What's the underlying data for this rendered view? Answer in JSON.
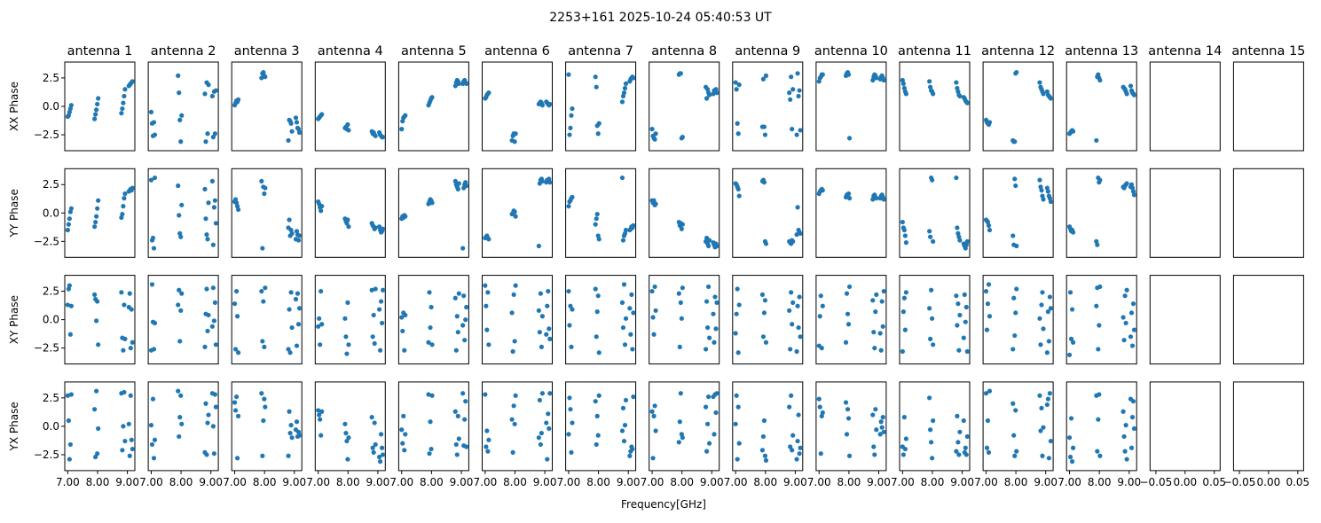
{
  "chart_data": {
    "type": "scatter",
    "title": "2253+161 2025-10-24 05:40:53 UT",
    "xlabel": "Frequency[GHz]",
    "marker_color": "#1f77b4",
    "rows": [
      "XX Phase",
      "YY Phase",
      "XY Phase",
      "YX Phase"
    ],
    "antennas": [
      "antenna 1",
      "antenna 2",
      "antenna 3",
      "antenna 4",
      "antenna 5",
      "antenna 6",
      "antenna 7",
      "antenna 8",
      "antenna 9",
      "antenna 10",
      "antenna 11",
      "antenna 12",
      "antenna 13",
      "antenna 14",
      "antenna 15"
    ],
    "xlim": [
      6.9,
      9.25
    ],
    "ylim": [
      -3.9,
      3.9
    ],
    "x_ticks": [
      7.0,
      8.0,
      9.0
    ],
    "x_tick_labels": [
      "7.00",
      "8.00",
      "9.00"
    ],
    "y_ticks": [
      -2.5,
      0.0,
      2.5
    ],
    "y_tick_labels": [
      "−2.5",
      "0.0",
      "2.5"
    ],
    "empty_panel_xlim": [
      -0.06,
      0.06
    ],
    "empty_panel_x_ticks": [
      -0.05,
      0.0,
      0.05
    ],
    "empty_panel_x_tick_labels": [
      "−0.05",
      "0.00",
      "0.05"
    ],
    "data_antennas": 13,
    "freqs": [
      7.0,
      7.03,
      7.06,
      7.09,
      7.12,
      7.9,
      7.93,
      7.96,
      7.99,
      8.02,
      8.8,
      8.83,
      8.86,
      8.89,
      8.92,
      9.05,
      9.08,
      9.11,
      9.14,
      9.17
    ],
    "phases": {
      "XX Phase": [
        [
          -0.9,
          -0.8,
          -0.5,
          -0.2,
          0.1,
          -1.1,
          -0.7,
          -0.3,
          0.2,
          0.7,
          -0.6,
          -0.2,
          0.3,
          0.9,
          1.5,
          1.8,
          1.9,
          2.0,
          2.1,
          2.2
        ],
        [
          -0.5,
          -1.5,
          -2.6,
          -1.4,
          -2.5,
          2.7,
          1.2,
          -1.2,
          -3.1,
          -0.8,
          1.1,
          -3.1,
          2.1,
          -2.4,
          1.9,
          0.9,
          -2.7,
          1.3,
          -2.4,
          1.4
        ],
        [
          0.1,
          0.3,
          0.5,
          0.4,
          0.6,
          2.5,
          2.9,
          3.0,
          2.7,
          2.6,
          -3.0,
          -1.2,
          -1.3,
          -1.5,
          -2.2,
          -1.0,
          -1.4,
          -1.9,
          -2.0,
          -2.3
        ],
        [
          -1.1,
          -1.0,
          -0.9,
          -0.8,
          -0.7,
          -1.9,
          -1.8,
          -2.0,
          -1.6,
          -2.1,
          -2.2,
          -2.4,
          -2.3,
          -2.5,
          -2.6,
          -2.3,
          -2.5,
          -2.6,
          -2.7,
          -2.7
        ],
        [
          -2.0,
          -1.3,
          -1.0,
          -0.9,
          -0.8,
          0.1,
          0.3,
          0.5,
          0.7,
          0.8,
          1.8,
          2.1,
          2.3,
          2.2,
          2.0,
          2.0,
          2.2,
          2.3,
          2.1,
          2.0
        ],
        [
          0.7,
          0.8,
          1.0,
          1.1,
          1.2,
          -3.0,
          -2.6,
          -2.4,
          -3.1,
          -2.4,
          0.2,
          0.3,
          0.4,
          0.3,
          0.1,
          0.4,
          0.3,
          0.2,
          0.1,
          0.2
        ],
        [
          2.8,
          -2.5,
          -1.9,
          -0.8,
          -0.2,
          2.6,
          1.7,
          -1.7,
          -2.4,
          -1.5,
          0.4,
          0.9,
          1.2,
          1.6,
          2.0,
          2.2,
          2.4,
          2.5,
          2.6,
          2.5
        ],
        [
          -2.0,
          -2.6,
          -2.8,
          -2.9,
          -2.4,
          2.8,
          2.9,
          2.9,
          -2.8,
          -2.7,
          1.7,
          0.7,
          1.5,
          1.2,
          1.0,
          1.1,
          1.4,
          1.3,
          1.5,
          1.2
        ],
        [
          2.1,
          1.5,
          -1.5,
          -2.4,
          1.9,
          -1.8,
          2.4,
          -1.8,
          -2.5,
          2.7,
          1.2,
          0.6,
          2.6,
          -2.0,
          1.5,
          -2.5,
          2.9,
          0.9,
          1.4,
          -2.1
        ],
        [
          2.2,
          2.5,
          2.6,
          2.8,
          2.8,
          2.7,
          2.9,
          3.0,
          2.8,
          -2.8,
          2.3,
          2.6,
          2.8,
          2.7,
          2.5,
          2.4,
          2.6,
          2.7,
          2.5,
          2.3
        ],
        [
          2.3,
          2.0,
          1.6,
          1.3,
          1.1,
          2.2,
          1.7,
          1.4,
          1.3,
          1.1,
          2.1,
          1.6,
          1.3,
          1.0,
          0.9,
          0.8,
          0.7,
          0.5,
          0.4,
          0.3
        ],
        [
          -1.2,
          -1.4,
          -1.5,
          -1.6,
          -1.4,
          -3.0,
          -3.1,
          -3.1,
          2.9,
          3.0,
          2.1,
          1.7,
          1.5,
          1.3,
          1.1,
          1.3,
          1.0,
          0.9,
          0.8,
          0.7
        ],
        [
          -2.4,
          -2.3,
          -2.2,
          -2.1,
          -2.2,
          -3.0,
          2.6,
          2.8,
          2.5,
          2.3,
          1.7,
          1.6,
          1.5,
          1.3,
          1.1,
          1.8,
          1.4,
          1.2,
          1.1,
          1.0
        ]
      ],
      "YY Phase": [
        [
          -1.5,
          -1.0,
          -0.5,
          0.1,
          0.4,
          -1.2,
          -0.8,
          -0.3,
          0.4,
          1.1,
          -0.4,
          -0.1,
          0.6,
          1.3,
          1.7,
          1.9,
          2.0,
          2.1,
          2.0,
          2.2
        ],
        [
          2.9,
          -2.4,
          -2.2,
          -3.1,
          3.1,
          2.4,
          -0.2,
          -1.8,
          -2.1,
          0.7,
          2.1,
          -0.5,
          -1.9,
          -2.3,
          0.9,
          2.8,
          -2.8,
          0.5,
          1.1,
          -0.9
        ],
        [
          1.0,
          1.2,
          0.9,
          0.6,
          0.3,
          2.8,
          -3.1,
          2.3,
          1.7,
          2.2,
          -1.3,
          -0.6,
          -2.0,
          -1.5,
          -1.8,
          -2.3,
          -1.6,
          -1.9,
          -2.4,
          -2.0
        ],
        [
          1.0,
          0.8,
          0.5,
          0.2,
          0.6,
          -0.5,
          -0.7,
          -0.9,
          -0.6,
          -1.2,
          -0.9,
          -1.1,
          -1.2,
          -1.4,
          -1.3,
          -1.2,
          -1.5,
          -1.7,
          -1.6,
          -1.4
        ],
        [
          -0.5,
          -0.3,
          -0.4,
          -0.2,
          -0.3,
          0.8,
          1.0,
          1.2,
          1.1,
          0.9,
          2.8,
          2.5,
          2.3,
          2.1,
          2.6,
          -3.1,
          2.2,
          2.5,
          2.7,
          2.4
        ],
        [
          -2.2,
          -2.1,
          -2.0,
          -2.2,
          -2.3,
          -0.1,
          0.0,
          0.2,
          0.1,
          -0.3,
          -2.9,
          2.6,
          2.9,
          3.0,
          2.8,
          2.7,
          2.9,
          2.8,
          3.0,
          2.7
        ],
        [
          0.6,
          1.0,
          1.1,
          1.3,
          1.4,
          -1.0,
          -0.5,
          -0.1,
          -2.0,
          -2.3,
          3.1,
          -2.4,
          -2.0,
          -1.8,
          -1.5,
          -1.5,
          -1.4,
          -1.2,
          -1.3,
          -1.1
        ],
        [
          1.1,
          0.9,
          1.1,
          0.7,
          0.8,
          -0.8,
          -1.1,
          -0.9,
          -1.4,
          -1.0,
          -2.5,
          -2.2,
          -2.7,
          -2.9,
          -2.4,
          -2.6,
          -2.8,
          -3.0,
          -2.7,
          -2.9
        ],
        [
          2.6,
          2.5,
          2.3,
          2.1,
          1.5,
          2.8,
          2.9,
          2.7,
          -2.5,
          -2.7,
          -2.5,
          -2.6,
          -2.7,
          -2.4,
          -2.5,
          -1.9,
          0.5,
          -1.5,
          -1.7,
          -1.8
        ],
        [
          1.7,
          1.9,
          2.0,
          2.1,
          2.0,
          1.4,
          1.6,
          1.5,
          1.7,
          1.3,
          1.2,
          1.5,
          1.6,
          1.4,
          1.3,
          1.3,
          1.5,
          1.6,
          1.4,
          1.2
        ],
        [
          -0.8,
          -1.3,
          -1.5,
          -2.0,
          -2.6,
          -1.6,
          -2.1,
          3.1,
          2.9,
          -2.5,
          3.1,
          -1.3,
          -1.8,
          -2.1,
          -2.4,
          -2.7,
          -2.9,
          -3.1,
          -2.8,
          -2.5
        ],
        [
          -0.6,
          -0.7,
          -0.8,
          -1.1,
          -1.5,
          -2.0,
          -2.8,
          3.0,
          2.4,
          -2.9,
          2.9,
          2.3,
          2.0,
          1.5,
          1.2,
          2.2,
          1.9,
          1.5,
          1.3,
          1.0
        ],
        [
          -1.2,
          -1.4,
          -1.6,
          -1.5,
          -1.7,
          -2.5,
          -2.8,
          3.1,
          2.7,
          2.9,
          2.3,
          2.2,
          2.4,
          2.5,
          2.6,
          2.3,
          2.5,
          2.2,
          1.9,
          1.6
        ]
      ],
      "XY Phase": [
        [
          1.3,
          2.7,
          3.0,
          -1.3,
          1.2,
          2.2,
          1.8,
          -0.1,
          1.6,
          -2.2,
          2.4,
          -1.6,
          -2.7,
          1.3,
          -1.7,
          1.1,
          2.3,
          -2.5,
          0.9,
          -2.0
        ],
        [
          -2.7,
          3.1,
          -0.2,
          -2.6,
          -0.3,
          1.3,
          2.6,
          -1.9,
          0.8,
          2.3,
          -2.4,
          0.5,
          2.7,
          -1.0,
          0.4,
          -0.6,
          2.8,
          -0.1,
          1.5,
          -2.2
        ],
        [
          1.4,
          -2.6,
          2.5,
          0.3,
          -2.9,
          2.5,
          -1.9,
          1.6,
          -2.4,
          2.8,
          -2.6,
          0.9,
          -2.9,
          2.4,
          -0.7,
          1.8,
          -2.3,
          2.3,
          -0.4,
          1.0
        ],
        [
          -0.6,
          0.1,
          -2.2,
          2.5,
          -0.4,
          0.1,
          -1.5,
          -3.0,
          1.5,
          -2.2,
          2.6,
          -1.5,
          0.4,
          -2.1,
          2.7,
          0.9,
          -2.7,
          1.6,
          -0.3,
          2.6
        ],
        [
          0.2,
          -1.0,
          0.6,
          -2.7,
          0.4,
          -2.0,
          2.4,
          -0.7,
          1.1,
          -2.2,
          1.9,
          -2.7,
          0.3,
          -1.1,
          2.3,
          -0.5,
          2.1,
          -1.8,
          0.0,
          1.1
        ],
        [
          3.0,
          1.2,
          -0.9,
          2.4,
          -2.2,
          0.6,
          -2.8,
          2.2,
          -1.9,
          3.0,
          0.8,
          -1.1,
          2.3,
          -2.4,
          0.3,
          -1.3,
          1.2,
          2.5,
          -0.8,
          -1.7
        ],
        [
          2.5,
          -0.5,
          1.2,
          -2.4,
          0.9,
          2.7,
          -1.5,
          0.7,
          2.1,
          -2.9,
          1.5,
          -0.7,
          3.1,
          -2.2,
          0.1,
          1.0,
          -1.3,
          2.2,
          -2.6,
          0.6
        ],
        [
          2.5,
          0.2,
          -1.3,
          2.9,
          0.8,
          2.3,
          -2.4,
          1.5,
          0.1,
          2.8,
          -2.6,
          1.6,
          -0.7,
          2.9,
          -1.6,
          0.5,
          -2.0,
          2.0,
          -0.8,
          1.5
        ],
        [
          -1.2,
          0.5,
          2.7,
          -2.9,
          1.3,
          2.2,
          -1.5,
          0.6,
          1.7,
          -2.0,
          0.8,
          -2.6,
          2.4,
          -0.4,
          1.5,
          -2.8,
          1.2,
          -0.7,
          2.0,
          -1.5
        ],
        [
          -2.3,
          0.3,
          2.1,
          -2.5,
          1.2,
          -2.0,
          2.3,
          0.5,
          -0.4,
          2.9,
          1.7,
          -1.1,
          -2.5,
          0.7,
          2.2,
          -1.2,
          -2.7,
          1.6,
          -0.6,
          2.5
        ],
        [
          -2.8,
          0.7,
          1.9,
          -0.9,
          2.4,
          1.0,
          -1.7,
          2.6,
          0.1,
          -2.2,
          2.1,
          -0.5,
          1.4,
          -2.7,
          0.4,
          -1.6,
          2.2,
          -0.2,
          1.1,
          -2.8
        ],
        [
          2.5,
          -0.9,
          1.4,
          3.1,
          0.3,
          -2.6,
          1.9,
          -1.4,
          0.6,
          2.7,
          0.1,
          -2.2,
          1.3,
          2.4,
          -0.8,
          -2.9,
          0.7,
          -1.9,
          2.0,
          1.0
        ],
        [
          -3.1,
          2.4,
          -1.7,
          0.9,
          -2.0,
          1.2,
          2.8,
          -2.6,
          -0.5,
          2.9,
          0.2,
          -1.8,
          2.1,
          -0.3,
          2.6,
          -1.5,
          0.6,
          -2.3,
          1.4,
          -0.9
        ]
      ],
      "YX Phase": [
        [
          2.7,
          0.5,
          -2.9,
          -1.6,
          2.8,
          1.5,
          -2.7,
          3.1,
          -2.4,
          -0.2,
          2.9,
          -2.1,
          0.0,
          3.0,
          -1.3,
          0.2,
          -2.6,
          2.7,
          -1.2,
          -2.0
        ],
        [
          0.1,
          -1.6,
          2.4,
          -2.8,
          -1.2,
          3.1,
          -0.9,
          0.8,
          2.7,
          0.2,
          -2.3,
          2.0,
          -2.5,
          0.3,
          1.0,
          2.9,
          0.0,
          -2.4,
          2.8,
          1.7
        ],
        [
          2.1,
          1.4,
          2.6,
          -2.8,
          0.9,
          2.9,
          -2.6,
          0.5,
          2.4,
          1.7,
          -2.6,
          1.3,
          -0.6,
          0.1,
          -1.0,
          -0.3,
          0.4,
          -0.9,
          -0.5,
          -0.8
        ],
        [
          1.4,
          1.0,
          0.6,
          -0.8,
          1.3,
          0.2,
          -0.6,
          -1.3,
          -2.9,
          -1.0,
          0.8,
          -1.9,
          -2.3,
          0.3,
          -1.6,
          -2.7,
          -3.1,
          -0.7,
          -1.9,
          -2.5
        ],
        [
          -0.3,
          -1.5,
          0.9,
          -2.1,
          -0.7,
          2.8,
          -2.4,
          0.4,
          -2.0,
          2.7,
          1.3,
          -1.6,
          -2.5,
          0.9,
          -1.1,
          2.9,
          -1.7,
          0.6,
          2.2,
          -1.8
        ],
        [
          2.8,
          -1.8,
          -0.4,
          -2.2,
          -1.2,
          0.6,
          -2.3,
          1.8,
          0.2,
          2.7,
          -1.0,
          2.3,
          -1.6,
          -0.6,
          2.9,
          0.3,
          -2.9,
          1.1,
          -0.2,
          2.9
        ],
        [
          -0.7,
          2.5,
          1.5,
          -2.3,
          0.3,
          2.2,
          -1.6,
          0.9,
          -0.8,
          2.7,
          -0.4,
          1.6,
          -1.3,
          0.1,
          2.3,
          -2.6,
          -2.2,
          -1.8,
          -2.0,
          2.6
        ],
        [
          1.3,
          -2.8,
          0.9,
          1.8,
          -0.4,
          -1.4,
          0.4,
          2.9,
          -0.7,
          -1.0,
          1.7,
          -2.2,
          0.2,
          2.6,
          -1.5,
          2.6,
          -0.7,
          2.8,
          1.2,
          2.9
        ],
        [
          0.2,
          2.7,
          -2.9,
          1.7,
          -1.5,
          -2.1,
          -0.9,
          0.5,
          -2.6,
          -3.0,
          1.7,
          -1.8,
          2.7,
          -2.1,
          -0.8,
          -2.9,
          -1.3,
          1.0,
          -2.4,
          -1.9
        ],
        [
          2.4,
          1.7,
          -2.4,
          0.9,
          1.2,
          2.1,
          -0.7,
          1.5,
          0.7,
          -2.6,
          1.0,
          -1.8,
          -2.5,
          1.5,
          -0.3,
          -0.7,
          0.4,
          -0.1,
          0.8,
          -0.5
        ],
        [
          -1.8,
          -2.5,
          0.8,
          -2.0,
          -1.1,
          2.5,
          -0.3,
          -1.4,
          -2.8,
          0.5,
          -2.2,
          0.9,
          -1.4,
          -2.5,
          -0.5,
          0.5,
          -2.3,
          -1.9,
          -2.5,
          -0.9
        ],
        [
          2.9,
          -1.9,
          0.5,
          -2.3,
          3.1,
          2.0,
          -0.8,
          -2.6,
          1.4,
          -2.2,
          2.7,
          -0.4,
          1.6,
          -2.6,
          -0.1,
          1.9,
          2.4,
          -2.8,
          2.9,
          -1.3
        ],
        [
          -1.0,
          -2.7,
          0.7,
          -3.1,
          -1.9,
          2.7,
          -2.2,
          0.6,
          2.8,
          -2.6,
          1.3,
          -0.9,
          -2.2,
          0.1,
          -2.9,
          2.4,
          -1.9,
          0.8,
          2.2,
          -0.2
        ]
      ]
    }
  }
}
